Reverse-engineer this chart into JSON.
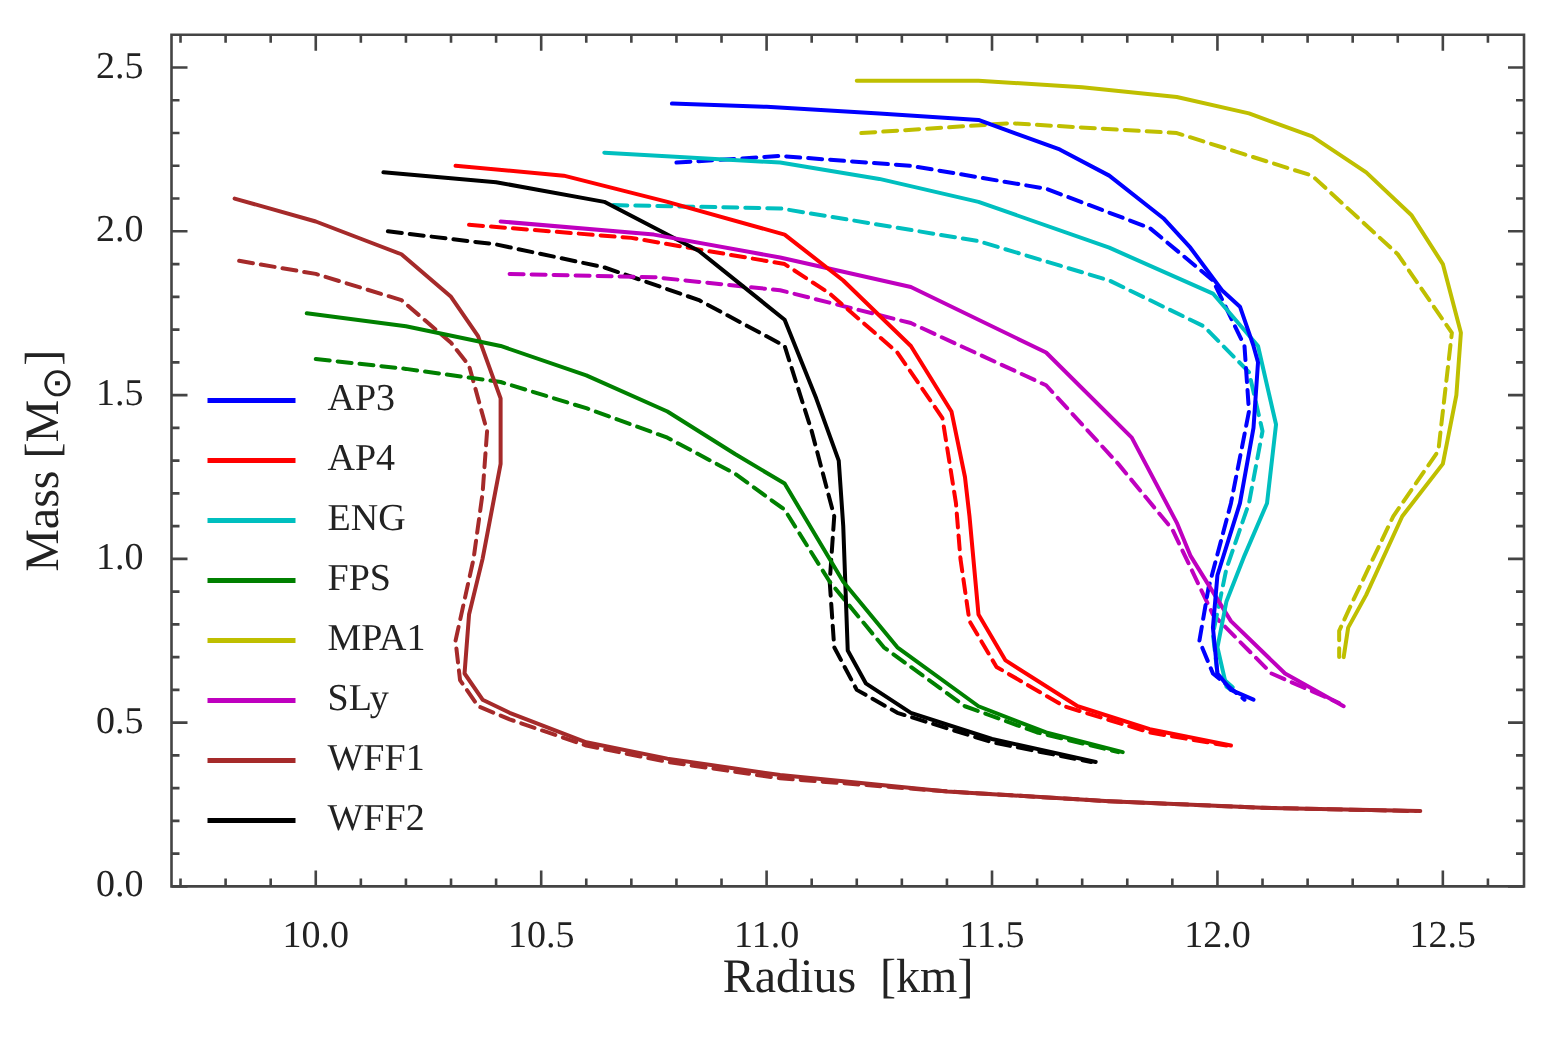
{
  "chart_data": {
    "type": "line",
    "xlabel": "Radius  [km]",
    "ylabel": "Mass [M$_{⊙}$]",
    "xlim": [
      9.68,
      12.68
    ],
    "ylim": [
      0,
      2.6
    ],
    "xticks": [
      {
        "value": 9.7,
        "label": null
      },
      {
        "value": 9.8,
        "label": null
      },
      {
        "value": 9.9,
        "label": null
      },
      {
        "value": 10,
        "label": "10.0"
      },
      {
        "value": 10.1,
        "label": null
      },
      {
        "value": 10.2,
        "label": null
      },
      {
        "value": 10.3,
        "label": null
      },
      {
        "value": 10.4,
        "label": null
      },
      10.5,
      {
        "value": 10.6,
        "label": null
      },
      {
        "value": 10.7,
        "label": null
      },
      {
        "value": 10.8,
        "label": null
      },
      {
        "value": 10.9,
        "label": null
      },
      {
        "value": 11,
        "label": "11.0"
      },
      {
        "value": 11.1,
        "label": null
      },
      {
        "value": 11.2,
        "label": null
      },
      {
        "value": 11.3,
        "label": null
      },
      {
        "value": 11.4,
        "label": null
      },
      11.5,
      {
        "value": 11.6,
        "label": null
      },
      {
        "value": 11.7,
        "label": null
      },
      {
        "value": 11.8,
        "label": null
      },
      {
        "value": 11.9,
        "label": null
      },
      {
        "value": 12,
        "label": "12.0"
      },
      {
        "value": 12.1,
        "label": null
      },
      {
        "value": 12.2,
        "label": null
      },
      {
        "value": 12.3,
        "label": null
      },
      {
        "value": 12.4,
        "label": null
      },
      12.5,
      {
        "value": 12.6,
        "label": null
      }
    ],
    "yticks": [
      {
        "value": 0,
        "label": "0.0"
      },
      {
        "value": 0.1,
        "label": null
      },
      {
        "value": 0.2,
        "label": null
      },
      {
        "value": 0.3,
        "label": null
      },
      {
        "value": 0.4,
        "label": null
      },
      0.5,
      {
        "value": 0.6,
        "label": null
      },
      {
        "value": 0.7,
        "label": null
      },
      {
        "value": 0.8,
        "label": null
      },
      {
        "value": 0.9,
        "label": null
      },
      {
        "value": 1,
        "label": "1.0"
      },
      {
        "value": 1.1,
        "label": null
      },
      {
        "value": 1.2,
        "label": null
      },
      {
        "value": 1.3,
        "label": null
      },
      {
        "value": 1.4,
        "label": null
      },
      1.5,
      {
        "value": 1.6,
        "label": null
      },
      {
        "value": 1.7,
        "label": null
      },
      {
        "value": 1.8,
        "label": null
      },
      {
        "value": 1.9,
        "label": null
      },
      {
        "value": 2,
        "label": "2.0"
      },
      {
        "value": 2.1,
        "label": null
      },
      {
        "value": 2.2,
        "label": null
      },
      {
        "value": 2.3,
        "label": null
      },
      {
        "value": 2.4,
        "label": null
      },
      2.5
    ],
    "legend": "bottom left",
    "series": [
      {
        "name": "AP3",
        "color": "#0000ff",
        "line_style": "solid",
        "x": [
          10.79,
          11.0,
          11.25,
          11.47,
          11.65,
          11.76,
          11.88,
          11.94,
          12.01,
          12.05,
          12.08,
          12.09,
          12.08,
          12.05,
          12.0,
          11.99,
          12.0,
          12.03,
          12.08
        ],
        "values": [
          2.39,
          2.38,
          2.36,
          2.34,
          2.25,
          2.17,
          2.04,
          1.95,
          1.82,
          1.77,
          1.65,
          1.6,
          1.4,
          1.17,
          0.95,
          0.79,
          0.65,
          0.6,
          0.57
        ]
      },
      {
        "name": "AP4",
        "color": "#ff0000",
        "line_style": "solid",
        "x": [
          10.31,
          10.55,
          10.78,
          11.04,
          11.17,
          11.32,
          11.41,
          11.44,
          11.45,
          11.47,
          11.53,
          11.69,
          11.85,
          12.03
        ],
        "values": [
          2.2,
          2.17,
          2.09,
          1.99,
          1.85,
          1.65,
          1.45,
          1.25,
          1.13,
          0.83,
          0.69,
          0.55,
          0.48,
          0.43
        ]
      },
      {
        "name": "ENG",
        "color": "#00bfbf",
        "line_style": "solid",
        "x": [
          10.64,
          11.03,
          11.25,
          11.47,
          11.76,
          11.99,
          12.09,
          12.13,
          12.11,
          12.06,
          12.02,
          12.0,
          12.02,
          12.03
        ],
        "values": [
          2.24,
          2.21,
          2.16,
          2.09,
          1.95,
          1.81,
          1.65,
          1.41,
          1.17,
          1.01,
          0.87,
          0.73,
          0.61,
          0.6
        ]
      },
      {
        "name": "FPS",
        "color": "#008000",
        "line_style": "solid",
        "x": [
          9.98,
          10.2,
          10.41,
          10.6,
          10.78,
          10.93,
          11.04,
          11.17,
          11.29,
          11.47,
          11.62,
          11.79
        ],
        "values": [
          1.75,
          1.71,
          1.65,
          1.56,
          1.45,
          1.32,
          1.23,
          0.93,
          0.73,
          0.55,
          0.47,
          0.41
        ]
      },
      {
        "name": "MPA1",
        "color": "#bfbf00",
        "line_style": "solid",
        "x": [
          11.2,
          11.47,
          11.7,
          11.91,
          12.07,
          12.21,
          12.33,
          12.43,
          12.5,
          12.54,
          12.53,
          12.5,
          12.41,
          12.33,
          12.29,
          12.28
        ],
        "values": [
          2.46,
          2.46,
          2.44,
          2.41,
          2.36,
          2.29,
          2.18,
          2.05,
          1.9,
          1.69,
          1.5,
          1.29,
          1.13,
          0.89,
          0.79,
          0.7
        ]
      },
      {
        "name": "SLy",
        "color": "#bf00bf",
        "line_style": "solid",
        "x": [
          10.41,
          10.75,
          11.03,
          11.32,
          11.62,
          11.81,
          11.91,
          11.94,
          12.03,
          12.15,
          12.28
        ],
        "values": [
          2.03,
          1.99,
          1.92,
          1.83,
          1.63,
          1.37,
          1.11,
          1.01,
          0.81,
          0.65,
          0.55
        ]
      },
      {
        "name": "WFF1",
        "color": "#a52a2a",
        "line_style": "solid",
        "x": [
          9.82,
          10.0,
          10.19,
          10.3,
          10.36,
          10.41,
          10.41,
          10.37,
          10.34,
          10.33,
          10.37,
          10.43,
          10.6,
          10.78,
          11.03,
          11.4,
          11.76,
          12.1,
          12.45
        ],
        "values": [
          2.1,
          2.03,
          1.93,
          1.8,
          1.68,
          1.49,
          1.29,
          1.0,
          0.83,
          0.65,
          0.57,
          0.53,
          0.44,
          0.39,
          0.34,
          0.29,
          0.26,
          0.24,
          0.23
        ]
      },
      {
        "name": "WFF2",
        "color": "#000000",
        "line_style": "solid",
        "x": [
          10.15,
          10.4,
          10.64,
          10.85,
          11.04,
          11.11,
          11.16,
          11.17,
          11.18,
          11.22,
          11.32,
          11.5,
          11.73
        ],
        "values": [
          2.18,
          2.15,
          2.09,
          1.94,
          1.73,
          1.49,
          1.3,
          1.1,
          0.72,
          0.62,
          0.53,
          0.45,
          0.38
        ]
      },
      {
        "color": "#0000ff",
        "line_style": "dashed",
        "x": [
          10.8,
          11.03,
          11.32,
          11.62,
          11.85,
          11.99,
          12.06,
          12.07,
          12.03,
          11.98,
          11.96,
          11.99,
          12.06
        ],
        "values": [
          2.21,
          2.23,
          2.2,
          2.13,
          2.01,
          1.85,
          1.65,
          1.45,
          1.17,
          0.91,
          0.75,
          0.65,
          0.57
        ]
      },
      {
        "color": "#ff0000",
        "line_style": "dashed",
        "x": [
          10.34,
          10.7,
          11.04,
          11.14,
          11.29,
          11.39,
          11.42,
          11.43,
          11.45,
          11.51,
          11.66,
          11.85,
          12.02
        ],
        "values": [
          2.02,
          1.98,
          1.9,
          1.81,
          1.63,
          1.43,
          1.17,
          1.0,
          0.81,
          0.67,
          0.55,
          0.47,
          0.43
        ]
      },
      {
        "color": "#00bfbf",
        "line_style": "dashed",
        "x": [
          10.66,
          11.03,
          11.47,
          11.76,
          11.97,
          12.07,
          12.1,
          12.07,
          12.02,
          11.99,
          12.0,
          12.04
        ],
        "values": [
          2.08,
          2.07,
          1.97,
          1.85,
          1.71,
          1.57,
          1.39,
          1.17,
          0.97,
          0.77,
          0.65,
          0.6
        ]
      },
      {
        "color": "#008000",
        "line_style": "dashed",
        "x": [
          10.0,
          10.2,
          10.41,
          10.6,
          10.78,
          10.93,
          11.04,
          11.14,
          11.26,
          11.44,
          11.6,
          11.78
        ],
        "values": [
          1.61,
          1.58,
          1.54,
          1.46,
          1.37,
          1.26,
          1.15,
          0.93,
          0.73,
          0.55,
          0.47,
          0.41
        ]
      },
      {
        "color": "#bfbf00",
        "line_style": "dashed",
        "x": [
          11.21,
          11.54,
          11.91,
          12.21,
          12.4,
          12.52,
          12.5,
          12.49,
          12.39,
          12.3,
          12.27,
          12.27
        ],
        "values": [
          2.3,
          2.33,
          2.3,
          2.17,
          1.93,
          1.69,
          1.45,
          1.33,
          1.13,
          0.87,
          0.78,
          0.7
        ]
      },
      {
        "color": "#bf00bf",
        "line_style": "dashed",
        "x": [
          10.43,
          10.75,
          11.03,
          11.32,
          11.62,
          11.78,
          11.9,
          11.99,
          12.12,
          12.27
        ],
        "values": [
          1.87,
          1.86,
          1.82,
          1.72,
          1.53,
          1.29,
          1.09,
          0.83,
          0.65,
          0.56
        ]
      },
      {
        "color": "#a52a2a",
        "line_style": "dashed",
        "x": [
          9.83,
          10.0,
          10.19,
          10.3,
          10.34,
          10.38,
          10.37,
          10.35,
          10.31,
          10.32,
          10.36,
          10.43,
          10.6,
          10.78,
          11.03,
          11.4,
          11.76,
          12.1,
          12.44
        ],
        "values": [
          1.91,
          1.87,
          1.79,
          1.66,
          1.59,
          1.39,
          1.2,
          1.0,
          0.75,
          0.63,
          0.55,
          0.51,
          0.43,
          0.38,
          0.33,
          0.29,
          0.26,
          0.24,
          0.23
        ]
      },
      {
        "color": "#000000",
        "line_style": "dashed",
        "x": [
          10.16,
          10.4,
          10.64,
          10.85,
          11.04,
          11.1,
          11.15,
          11.14,
          11.15,
          11.2,
          11.29,
          11.5,
          11.72
        ],
        "values": [
          2.0,
          1.96,
          1.89,
          1.79,
          1.65,
          1.39,
          1.13,
          0.93,
          0.73,
          0.6,
          0.53,
          0.44,
          0.38
        ]
      }
    ]
  }
}
